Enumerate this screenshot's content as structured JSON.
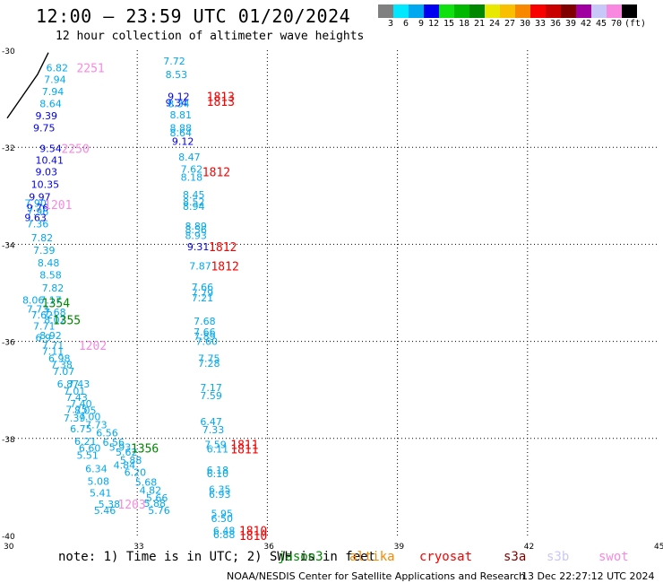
{
  "header": {
    "title": "12:00 — 23:59 UTC 01/20/2024",
    "subtitle": "12 hour collection of altimeter wave heights"
  },
  "colorbar": {
    "colors": [
      "#808080",
      "#00e8ff",
      "#00a8f0",
      "#0000f0",
      "#10e010",
      "#00b800",
      "#008800",
      "#e8e800",
      "#f8c000",
      "#f88800",
      "#f80000",
      "#c80000",
      "#800000",
      "#a000a0",
      "#c8c8f8",
      "#f888e0",
      "#000000"
    ],
    "labels": [
      "3",
      "6",
      "9",
      "12",
      "15",
      "18",
      "21",
      "24",
      "27",
      "30",
      "33",
      "36",
      "39",
      "42",
      "45",
      "70"
    ],
    "unit": "(ft)"
  },
  "map": {
    "xlim": [
      30,
      45
    ],
    "ylim": [
      -40,
      -30
    ],
    "x_ticks": [
      "30",
      "33",
      "36",
      "39",
      "42",
      "45"
    ],
    "y_ticks": [
      "-30",
      "-32",
      "-34",
      "-36",
      "-38",
      "-40"
    ]
  },
  "observations": [
    {
      "lon": 30.9,
      "lat": -30.36,
      "text": "6.82",
      "color": "#00a8f0"
    },
    {
      "lon": 30.85,
      "lat": -30.6,
      "text": "7.94",
      "color": "#00a8f0"
    },
    {
      "lon": 30.8,
      "lat": -30.85,
      "text": "7.94",
      "color": "#00a8f0"
    },
    {
      "lon": 30.75,
      "lat": -31.1,
      "text": "8.64",
      "color": "#00a8f0"
    },
    {
      "lon": 30.65,
      "lat": -31.35,
      "text": "9.39",
      "color": "#0000f0"
    },
    {
      "lon": 30.6,
      "lat": -31.6,
      "text": "9.75",
      "color": "#0000f0"
    },
    {
      "lon": 30.75,
      "lat": -32.02,
      "text": "9.54",
      "color": "#0000f0"
    },
    {
      "lon": 30.65,
      "lat": -32.26,
      "text": "10.41",
      "color": "#0000f0"
    },
    {
      "lon": 30.65,
      "lat": -32.5,
      "text": "9.03",
      "color": "#0000f0"
    },
    {
      "lon": 30.55,
      "lat": -32.76,
      "text": "10.35",
      "color": "#0000f0"
    },
    {
      "lon": 30.5,
      "lat": -33.02,
      "text": "9.97",
      "color": "#0000f0"
    },
    {
      "lon": 30.4,
      "lat": -33.15,
      "text": "7.90",
      "color": "#00a8f0"
    },
    {
      "lon": 30.45,
      "lat": -33.24,
      "text": "9.76",
      "color": "#0000f0"
    },
    {
      "lon": 30.45,
      "lat": -33.33,
      "text": "7.96",
      "color": "#00a8f0"
    },
    {
      "lon": 30.4,
      "lat": -33.45,
      "text": "9.63",
      "color": "#0000f0"
    },
    {
      "lon": 30.45,
      "lat": -33.58,
      "text": "7.36",
      "color": "#00a8f0"
    },
    {
      "lon": 30.55,
      "lat": -33.86,
      "text": "7.82",
      "color": "#00a8f0"
    },
    {
      "lon": 30.6,
      "lat": -34.12,
      "text": "7.39",
      "color": "#00a8f0"
    },
    {
      "lon": 30.7,
      "lat": -34.38,
      "text": "8.48",
      "color": "#00a8f0"
    },
    {
      "lon": 30.75,
      "lat": -34.63,
      "text": "8.58",
      "color": "#00a8f0"
    },
    {
      "lon": 30.8,
      "lat": -34.9,
      "text": "7.82",
      "color": "#00a8f0"
    },
    {
      "lon": 30.35,
      "lat": -35.15,
      "text": "8.06",
      "color": "#00a8f0"
    },
    {
      "lon": 30.75,
      "lat": -35.15,
      "text": "7.17",
      "color": "#00a8f0"
    },
    {
      "lon": 30.45,
      "lat": -35.33,
      "text": "7.73",
      "color": "#00a8f0"
    },
    {
      "lon": 30.85,
      "lat": -35.4,
      "text": "7.68",
      "color": "#00a8f0"
    },
    {
      "lon": 30.55,
      "lat": -35.45,
      "text": "7.62",
      "color": "#00a8f0"
    },
    {
      "lon": 30.85,
      "lat": -35.55,
      "text": "8.02",
      "color": "#00a8f0"
    },
    {
      "lon": 30.6,
      "lat": -35.68,
      "text": "7.71",
      "color": "#00a8f0"
    },
    {
      "lon": 30.75,
      "lat": -35.88,
      "text": "8.92",
      "color": "#00a8f0"
    },
    {
      "lon": 30.65,
      "lat": -35.92,
      "text": "6.9",
      "color": "#00a8f0"
    },
    {
      "lon": 30.8,
      "lat": -36.08,
      "text": "7.71",
      "color": "#00a8f0"
    },
    {
      "lon": 30.8,
      "lat": -36.2,
      "text": "7.11",
      "color": "#00a8f0"
    },
    {
      "lon": 30.95,
      "lat": -36.35,
      "text": "6.98",
      "color": "#00a8f0"
    },
    {
      "lon": 31.0,
      "lat": -36.48,
      "text": "7.38",
      "color": "#00a8f0"
    },
    {
      "lon": 31.05,
      "lat": -36.62,
      "text": "7.07",
      "color": "#00a8f0"
    },
    {
      "lon": 31.15,
      "lat": -36.88,
      "text": "6.87",
      "color": "#00a8f0"
    },
    {
      "lon": 31.4,
      "lat": -36.88,
      "text": "7.43",
      "color": "#00a8f0"
    },
    {
      "lon": 31.3,
      "lat": -37.02,
      "text": "7.01",
      "color": "#00a8f0"
    },
    {
      "lon": 31.35,
      "lat": -37.15,
      "text": "7.43",
      "color": "#00a8f0"
    },
    {
      "lon": 31.45,
      "lat": -37.28,
      "text": "7.40",
      "color": "#00a8f0"
    },
    {
      "lon": 31.35,
      "lat": -37.4,
      "text": "7.75",
      "color": "#00a8f0"
    },
    {
      "lon": 31.55,
      "lat": -37.42,
      "text": "8.05",
      "color": "#00a8f0"
    },
    {
      "lon": 31.3,
      "lat": -37.58,
      "text": "7.39",
      "color": "#00a8f0"
    },
    {
      "lon": 31.65,
      "lat": -37.55,
      "text": "7.00",
      "color": "#00a8f0"
    },
    {
      "lon": 31.45,
      "lat": -37.8,
      "text": "6.75",
      "color": "#00a8f0"
    },
    {
      "lon": 31.8,
      "lat": -37.72,
      "text": "7.73",
      "color": "#00a8f0"
    },
    {
      "lon": 32.05,
      "lat": -37.88,
      "text": "6.56",
      "color": "#00a8f0"
    },
    {
      "lon": 31.55,
      "lat": -38.06,
      "text": "6.21",
      "color": "#00a8f0"
    },
    {
      "lon": 32.2,
      "lat": -38.08,
      "text": "6.56",
      "color": "#00a8f0"
    },
    {
      "lon": 31.65,
      "lat": -38.2,
      "text": "6.60",
      "color": "#00a8f0"
    },
    {
      "lon": 32.35,
      "lat": -38.18,
      "text": "5.93",
      "color": "#00a8f0"
    },
    {
      "lon": 32.5,
      "lat": -38.28,
      "text": "5.62",
      "color": "#00a8f0"
    },
    {
      "lon": 31.6,
      "lat": -38.35,
      "text": "5.51",
      "color": "#00a8f0"
    },
    {
      "lon": 32.6,
      "lat": -38.45,
      "text": "5.88",
      "color": "#00a8f0"
    },
    {
      "lon": 31.8,
      "lat": -38.62,
      "text": "6.34",
      "color": "#00a8f0"
    },
    {
      "lon": 32.45,
      "lat": -38.55,
      "text": "4.84",
      "color": "#00a8f0"
    },
    {
      "lon": 32.7,
      "lat": -38.7,
      "text": "6.20",
      "color": "#00a8f0"
    },
    {
      "lon": 31.85,
      "lat": -38.88,
      "text": "5.08",
      "color": "#00a8f0"
    },
    {
      "lon": 32.95,
      "lat": -38.9,
      "text": "5.68",
      "color": "#00a8f0"
    },
    {
      "lon": 31.9,
      "lat": -39.12,
      "text": "5.41",
      "color": "#00a8f0"
    },
    {
      "lon": 33.05,
      "lat": -39.07,
      "text": "4.82",
      "color": "#00a8f0"
    },
    {
      "lon": 32.1,
      "lat": -39.35,
      "text": "5.38",
      "color": "#00a8f0"
    },
    {
      "lon": 33.2,
      "lat": -39.22,
      "text": "5.66",
      "color": "#00a8f0"
    },
    {
      "lon": 33.15,
      "lat": -39.33,
      "text": "5.88",
      "color": "#00a8f0"
    },
    {
      "lon": 32.0,
      "lat": -39.48,
      "text": "5.46",
      "color": "#00a8f0"
    },
    {
      "lon": 33.25,
      "lat": -39.48,
      "text": "5.76",
      "color": "#00a8f0"
    },
    {
      "lon": 33.6,
      "lat": -30.22,
      "text": "7.72",
      "color": "#00a8f0"
    },
    {
      "lon": 33.65,
      "lat": -30.5,
      "text": "8.53",
      "color": "#00a8f0"
    },
    {
      "lon": 33.7,
      "lat": -30.95,
      "text": "9.12",
      "color": "#0000f0"
    },
    {
      "lon": 33.65,
      "lat": -31.08,
      "text": "9.34",
      "color": "#0000f0"
    },
    {
      "lon": 33.7,
      "lat": -31.1,
      "text": "8.34",
      "color": "#00a8f0"
    },
    {
      "lon": 33.75,
      "lat": -31.33,
      "text": "8.81",
      "color": "#00a8f0"
    },
    {
      "lon": 33.75,
      "lat": -31.6,
      "text": "8.88",
      "color": "#00a8f0"
    },
    {
      "lon": 33.75,
      "lat": -31.7,
      "text": "8.64",
      "color": "#00a8f0"
    },
    {
      "lon": 33.8,
      "lat": -31.88,
      "text": "9.12",
      "color": "#0000f0"
    },
    {
      "lon": 33.95,
      "lat": -32.2,
      "text": "8.47",
      "color": "#00a8f0"
    },
    {
      "lon": 34.0,
      "lat": -32.45,
      "text": "7.62",
      "color": "#00a8f0"
    },
    {
      "lon": 34.0,
      "lat": -32.62,
      "text": "8.18",
      "color": "#00a8f0"
    },
    {
      "lon": 34.05,
      "lat": -32.98,
      "text": "8.45",
      "color": "#00a8f0"
    },
    {
      "lon": 34.05,
      "lat": -33.12,
      "text": "8.52",
      "color": "#00a8f0"
    },
    {
      "lon": 34.05,
      "lat": -33.22,
      "text": "8.94",
      "color": "#00a8f0"
    },
    {
      "lon": 34.1,
      "lat": -33.62,
      "text": "8.89",
      "color": "#00a8f0"
    },
    {
      "lon": 34.1,
      "lat": -33.7,
      "text": "8.56",
      "color": "#00a8f0"
    },
    {
      "lon": 34.1,
      "lat": -33.82,
      "text": "8.93",
      "color": "#00a8f0"
    },
    {
      "lon": 34.15,
      "lat": -34.05,
      "text": "9.31",
      "color": "#0000f0"
    },
    {
      "lon": 34.2,
      "lat": -34.45,
      "text": "7.87",
      "color": "#00a8f0"
    },
    {
      "lon": 34.25,
      "lat": -34.88,
      "text": "7.66",
      "color": "#00a8f0"
    },
    {
      "lon": 34.25,
      "lat": -35.0,
      "text": "7.79",
      "color": "#00a8f0"
    },
    {
      "lon": 34.25,
      "lat": -35.1,
      "text": "7.21",
      "color": "#00a8f0"
    },
    {
      "lon": 34.3,
      "lat": -35.58,
      "text": "7.68",
      "color": "#00a8f0"
    },
    {
      "lon": 34.3,
      "lat": -35.8,
      "text": "7.66",
      "color": "#00a8f0"
    },
    {
      "lon": 34.3,
      "lat": -35.9,
      "text": "7.89",
      "color": "#00a8f0"
    },
    {
      "lon": 34.35,
      "lat": -36.0,
      "text": "7.60",
      "color": "#00a8f0"
    },
    {
      "lon": 34.4,
      "lat": -36.35,
      "text": "7.75",
      "color": "#00a8f0"
    },
    {
      "lon": 34.4,
      "lat": -36.45,
      "text": "7.28",
      "color": "#00a8f0"
    },
    {
      "lon": 34.45,
      "lat": -36.95,
      "text": "7.17",
      "color": "#00a8f0"
    },
    {
      "lon": 34.45,
      "lat": -37.12,
      "text": "7.59",
      "color": "#00a8f0"
    },
    {
      "lon": 34.45,
      "lat": -37.65,
      "text": "6.47",
      "color": "#00a8f0"
    },
    {
      "lon": 34.5,
      "lat": -37.82,
      "text": "7.33",
      "color": "#00a8f0"
    },
    {
      "lon": 34.55,
      "lat": -38.12,
      "text": "7.59",
      "color": "#00a8f0"
    },
    {
      "lon": 34.6,
      "lat": -38.22,
      "text": "6.11",
      "color": "#00a8f0"
    },
    {
      "lon": 34.6,
      "lat": -38.65,
      "text": "6.18",
      "color": "#00a8f0"
    },
    {
      "lon": 34.6,
      "lat": -38.72,
      "text": "6.10",
      "color": "#00a8f0"
    },
    {
      "lon": 34.65,
      "lat": -39.05,
      "text": "6.35",
      "color": "#00a8f0"
    },
    {
      "lon": 34.65,
      "lat": -39.15,
      "text": "6.93",
      "color": "#00a8f0"
    },
    {
      "lon": 34.7,
      "lat": -39.55,
      "text": "5.95",
      "color": "#00a8f0"
    },
    {
      "lon": 34.7,
      "lat": -39.65,
      "text": "6.50",
      "color": "#00a8f0"
    },
    {
      "lon": 34.75,
      "lat": -39.9,
      "text": "6.48",
      "color": "#00a8f0"
    },
    {
      "lon": 34.75,
      "lat": -39.98,
      "text": "6.88",
      "color": "#00a8f0"
    }
  ],
  "pass_labels": [
    {
      "lon": 31.6,
      "lat": -30.36,
      "text": "2251",
      "color": "#f888e0"
    },
    {
      "lon": 31.25,
      "lat": -32.02,
      "text": "2250",
      "color": "#f888e0"
    },
    {
      "lon": 30.85,
      "lat": -33.18,
      "text": "1201",
      "color": "#f888e0"
    },
    {
      "lon": 31.65,
      "lat": -36.08,
      "text": "1202",
      "color": "#f888e0"
    },
    {
      "lon": 32.55,
      "lat": -39.35,
      "text": "1203",
      "color": "#f888e0"
    },
    {
      "lon": 30.8,
      "lat": -35.2,
      "text": "1354",
      "color": "#008800"
    },
    {
      "lon": 31.05,
      "lat": -35.55,
      "text": "1355",
      "color": "#008800"
    },
    {
      "lon": 32.85,
      "lat": -38.2,
      "text": "1356",
      "color": "#008800"
    },
    {
      "lon": 34.6,
      "lat": -30.95,
      "text": "1813",
      "color": "#f80000"
    },
    {
      "lon": 34.6,
      "lat": -31.05,
      "text": "1813",
      "color": "#f80000"
    },
    {
      "lon": 34.5,
      "lat": -32.5,
      "text": "1812",
      "color": "#f80000"
    },
    {
      "lon": 34.65,
      "lat": -34.05,
      "text": "1812",
      "color": "#f80000"
    },
    {
      "lon": 34.7,
      "lat": -34.45,
      "text": "1812",
      "color": "#f80000"
    },
    {
      "lon": 35.15,
      "lat": -38.12,
      "text": "1811",
      "color": "#f80000"
    },
    {
      "lon": 35.15,
      "lat": -38.22,
      "text": "1811",
      "color": "#f80000"
    },
    {
      "lon": 35.35,
      "lat": -39.9,
      "text": "1810",
      "color": "#f80000"
    },
    {
      "lon": 35.35,
      "lat": -40.0,
      "text": "1810",
      "color": "#f80000"
    }
  ],
  "note": "note: 1) Time is in UTC; 2) SWH is in feet",
  "satellites": [
    {
      "name": "jason3",
      "color": "#008800",
      "offset": 10
    },
    {
      "name": "altika",
      "color": "#f88800",
      "offset": 90
    },
    {
      "name": "cryosat",
      "color": "#f80000",
      "offset": 168
    },
    {
      "name": "s3a",
      "color": "#800000",
      "offset": 262
    },
    {
      "name": "s3b",
      "color": "#c8c8f8",
      "offset": 310
    },
    {
      "name": "swot",
      "color": "#f888e0",
      "offset": 368
    }
  ],
  "footer": {
    "credit": "NOAA/NESDIS Center for Satellite Applications and Research",
    "stamp": "13 Dec 22:27:12 UTC 2024"
  }
}
